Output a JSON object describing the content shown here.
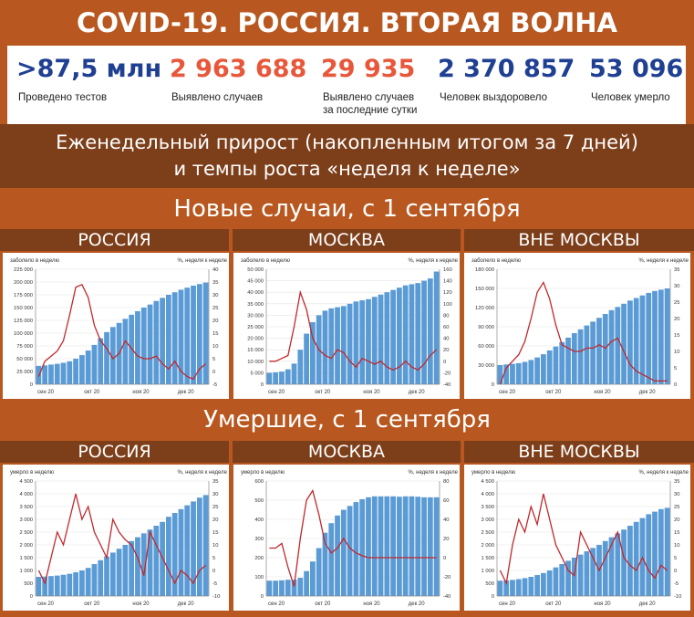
{
  "title": "COVID-19. РОССИЯ. ВТОРАЯ ВОЛНА",
  "stats": [
    {
      "value": ">87,5 млн",
      "label": "Проведено тестов",
      "color": "#1f3f93"
    },
    {
      "value": "2 963 688",
      "label": "Выявлено случаев",
      "color": "#e8573a"
    },
    {
      "value": "29 935",
      "label": "Выявлено случаев\nза последние сутки",
      "color": "#e8573a"
    },
    {
      "value": "2 370 857",
      "label": "Человек выздоровело",
      "color": "#1f3f93"
    },
    {
      "value": "53 096",
      "label": "Человек умерло",
      "color": "#1f3f93"
    }
  ],
  "subtitle_line1": "Еженедельный прирост (накопленным итогом за 7 дней)",
  "subtitle_line2": "и темпы роста «неделя к неделе»",
  "section_cases": "Новые случаи, с 1 сентября",
  "section_deaths": "Умершие, с 1 сентября",
  "regions": [
    "РОССИЯ",
    "МОСКВА",
    "ВНЕ МОСКВЫ"
  ],
  "colors": {
    "bars": "#5b9bd5",
    "line": "#c0282d",
    "header_bg": "#b8571f",
    "band_dark": "#7d3e1a"
  },
  "chart_data": [
    {
      "type": "bar+line",
      "region": "РОССИЯ",
      "metric": "cases",
      "left_label": "заболело в неделю",
      "right_label": "%, неделя к неделе",
      "ylim_left": [
        0,
        225000
      ],
      "ylim_right": [
        -5,
        40
      ],
      "left_ticks": [
        "225 000",
        "200 000",
        "175 000",
        "150 000",
        "125 000",
        "100 000",
        "75 000",
        "50 000",
        "25 000",
        "0"
      ],
      "right_ticks": [
        "40",
        "35",
        "30",
        "25",
        "20",
        "15",
        "10",
        "5",
        "0",
        "-5"
      ],
      "x_labels": [
        "сен 20",
        "окт 20",
        "ноя 20",
        "дек 20"
      ],
      "bars": [
        36000,
        37000,
        38500,
        40000,
        42000,
        45000,
        50000,
        57000,
        66000,
        77000,
        90000,
        102000,
        112000,
        120000,
        128000,
        136000,
        143000,
        150000,
        156000,
        163000,
        169000,
        175000,
        180000,
        185000,
        189000,
        193000,
        196000,
        199000
      ],
      "line": [
        -2,
        4,
        6,
        8,
        12,
        22,
        33,
        34,
        29,
        18,
        12,
        9,
        5,
        7,
        12,
        9,
        6,
        5,
        5,
        6,
        3,
        1,
        4,
        0,
        -2,
        -3,
        1,
        3
      ]
    },
    {
      "type": "bar+line",
      "region": "МОСКВА",
      "metric": "cases",
      "left_label": "заболело в неделю",
      "right_label": "%, неделя к неделе",
      "ylim_left": [
        0,
        50000
      ],
      "ylim_right": [
        -40,
        160
      ],
      "left_ticks": [
        "50 000",
        "45 000",
        "40 000",
        "35 000",
        "30 000",
        "25 000",
        "20 000",
        "15 000",
        "10 000",
        "5 000",
        "0"
      ],
      "right_ticks": [
        "160",
        "140",
        "120",
        "100",
        "80",
        "60",
        "40",
        "20",
        "0",
        "-20",
        "-40"
      ],
      "x_labels": [
        "сен 20",
        "окт 20",
        "ноя 20",
        "дек 20"
      ],
      "bars": [
        5000,
        5200,
        5500,
        6500,
        9000,
        15000,
        22000,
        27000,
        30000,
        32000,
        33000,
        33500,
        34000,
        35000,
        36000,
        36500,
        37000,
        38000,
        39000,
        40000,
        41000,
        42000,
        43000,
        43500,
        44000,
        45000,
        46000,
        49000
      ],
      "line": [
        0,
        0,
        5,
        10,
        60,
        120,
        90,
        40,
        20,
        10,
        5,
        20,
        15,
        0,
        -10,
        5,
        0,
        -5,
        0,
        -10,
        -15,
        -10,
        0,
        -10,
        -15,
        -5,
        10,
        20
      ]
    },
    {
      "type": "bar+line",
      "region": "ВНЕ МОСКВЫ",
      "metric": "cases",
      "left_label": "заболело в неделю",
      "right_label": "%, неделя к неделе",
      "ylim_left": [
        0,
        180000
      ],
      "ylim_right": [
        0,
        35
      ],
      "left_ticks": [
        "180 000",
        "150 000",
        "120 000",
        "90 000",
        "60 000",
        "30 000",
        "0"
      ],
      "right_ticks": [
        "35",
        "30",
        "25",
        "20",
        "15",
        "10",
        "5",
        "0"
      ],
      "x_labels": [
        "сен 20",
        "окт 20",
        "ноя 20",
        "дек 20"
      ],
      "bars": [
        30000,
        31000,
        32000,
        33000,
        35000,
        38000,
        42000,
        47000,
        53000,
        59000,
        66000,
        73000,
        80000,
        86000,
        92000,
        98000,
        104000,
        110000,
        116000,
        121000,
        126000,
        131000,
        135000,
        139000,
        143000,
        146000,
        148000,
        150000
      ],
      "line": [
        0,
        5,
        7,
        9,
        13,
        20,
        28,
        31,
        26,
        18,
        12,
        11,
        10,
        10,
        11,
        11,
        12,
        11,
        13,
        14,
        10,
        6,
        4,
        3,
        2,
        1,
        1,
        1
      ]
    },
    {
      "type": "bar+line",
      "region": "РОССИЯ",
      "metric": "deaths",
      "left_label": "умерло в неделю",
      "right_label": "%, неделя к неделе",
      "ylim_left": [
        0,
        4500
      ],
      "ylim_right": [
        -10,
        35
      ],
      "left_ticks": [
        "4 500",
        "4 000",
        "3 500",
        "3 000",
        "2 500",
        "2 000",
        "1 500",
        "1 000",
        "500",
        "0"
      ],
      "right_ticks": [
        "35",
        "30",
        "25",
        "20",
        "15",
        "10",
        "5",
        "0",
        "-5",
        "-10"
      ],
      "x_labels": [
        "сен 20",
        "окт 20",
        "ноя 20",
        "дек 20"
      ],
      "bars": [
        750,
        760,
        780,
        800,
        830,
        870,
        930,
        1000,
        1100,
        1250,
        1400,
        1550,
        1700,
        1850,
        2000,
        2150,
        2300,
        2450,
        2600,
        2750,
        2900,
        3100,
        3250,
        3400,
        3550,
        3700,
        3850,
        3950
      ],
      "line": [
        0,
        -5,
        5,
        15,
        10,
        20,
        30,
        20,
        25,
        15,
        10,
        5,
        20,
        15,
        12,
        10,
        5,
        -2,
        15,
        10,
        5,
        0,
        -5,
        0,
        -2,
        -5,
        0,
        2
      ]
    },
    {
      "type": "bar+line",
      "region": "МОСКВА",
      "metric": "deaths",
      "left_label": "умерло в неделю",
      "right_label": "%, неделя к неделе",
      "ylim_left": [
        0,
        600
      ],
      "ylim_right": [
        -40,
        80
      ],
      "left_ticks": [
        "600",
        "500",
        "400",
        "300",
        "200",
        "100",
        "0"
      ],
      "right_ticks": [
        "80",
        "60",
        "40",
        "20",
        "0",
        "-20",
        "-40"
      ],
      "x_labels": [
        "сен 20",
        "окт 20",
        "ноя 20",
        "дек 20"
      ],
      "bars": [
        80,
        80,
        82,
        85,
        85,
        95,
        130,
        180,
        250,
        330,
        380,
        420,
        450,
        470,
        490,
        505,
        515,
        520,
        520,
        520,
        520,
        518,
        520,
        520,
        518,
        515,
        515,
        515
      ],
      "line": [
        10,
        10,
        15,
        -10,
        -30,
        20,
        60,
        70,
        45,
        15,
        5,
        10,
        20,
        10,
        5,
        2,
        0,
        0,
        0,
        0,
        0,
        0,
        0,
        0,
        0,
        0,
        0,
        0
      ]
    },
    {
      "type": "bar+line",
      "region": "ВНЕ МОСКВЫ",
      "metric": "deaths",
      "left_label": "умерло в неделю",
      "right_label": "%, неделя к неделе",
      "ylim_left": [
        0,
        4500
      ],
      "ylim_right": [
        -10,
        35
      ],
      "left_ticks": [
        "4 500",
        "4 000",
        "3 500",
        "3 000",
        "2 500",
        "2 000",
        "1 500",
        "1 000",
        "500",
        "0"
      ],
      "right_ticks": [
        "35",
        "30",
        "25",
        "20",
        "15",
        "10",
        "5",
        "0",
        "-5",
        "-10"
      ],
      "x_labels": [
        "сен 20",
        "окт 20",
        "ноя 20",
        "дек 20"
      ],
      "bars": [
        600,
        610,
        630,
        660,
        700,
        750,
        820,
        900,
        1000,
        1120,
        1250,
        1380,
        1500,
        1620,
        1750,
        1880,
        2000,
        2150,
        2300,
        2450,
        2600,
        2750,
        2900,
        3050,
        3200,
        3300,
        3400,
        3450
      ],
      "line": [
        0,
        -5,
        10,
        20,
        15,
        25,
        18,
        30,
        20,
        10,
        5,
        0,
        -2,
        15,
        10,
        5,
        0,
        5,
        10,
        15,
        5,
        2,
        0,
        5,
        0,
        -3,
        2,
        0
      ]
    }
  ]
}
